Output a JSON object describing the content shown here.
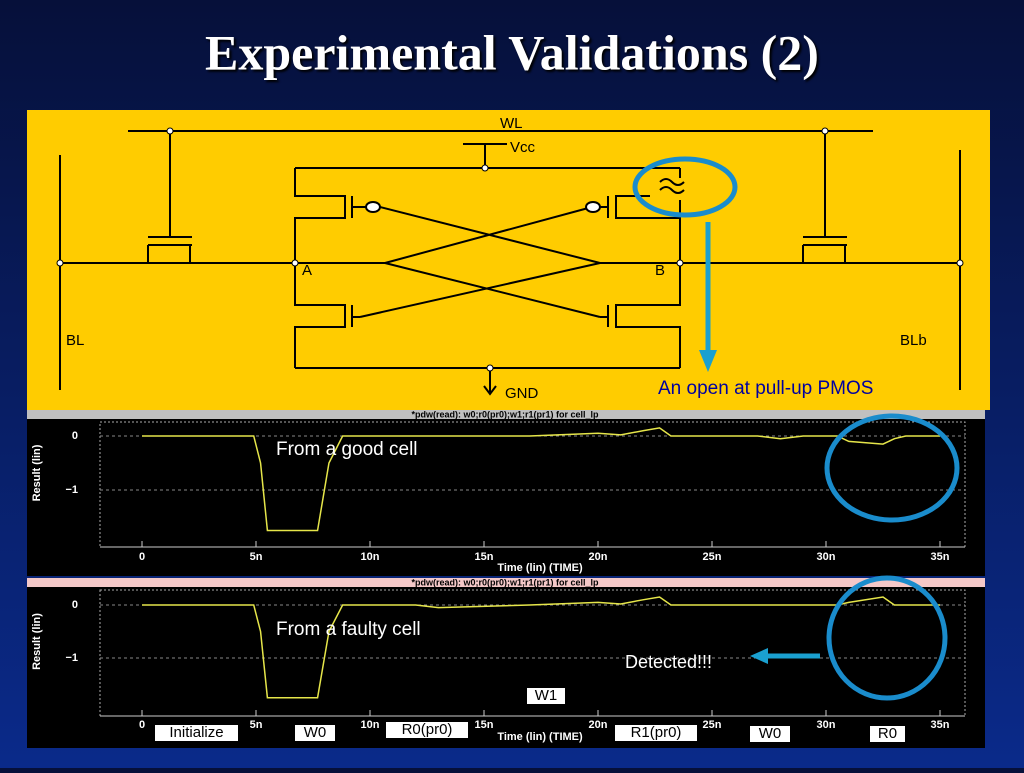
{
  "title": "Experimental Validations (2)",
  "circuit": {
    "wl": "WL",
    "vcc": "Vcc",
    "a": "A",
    "b": "B",
    "bl": "BL",
    "blb": "BLb",
    "gnd": "GND",
    "note": "An open at pull-up PMOS"
  },
  "plots": [
    {
      "header": "*pdw(read): w0;r0(pr0);w1;r1(pr1) for cell_lp",
      "ylabel": "Result (lin)",
      "xlabel": "Time (lin) (TIME)",
      "xticks": [
        0,
        {
          "value": 5,
          "label": "5n"
        },
        {
          "value": 10,
          "label": "10n"
        },
        {
          "value": 15,
          "label": "15n"
        },
        {
          "value": 20,
          "label": "20n"
        },
        {
          "value": 25,
          "label": "25n"
        },
        {
          "value": 30,
          "label": "30n"
        },
        {
          "value": 35,
          "label": "35n"
        }
      ],
      "yticks": [
        0,
        {
          "value": -1,
          "label": "−1"
        }
      ],
      "x": [
        0,
        4.9,
        5.2,
        5.5,
        7.7,
        8.2,
        8.8,
        17,
        20,
        21,
        22,
        22.7,
        23.2,
        27,
        28,
        29,
        30.5,
        31,
        32.5,
        33,
        33.5,
        35
      ],
      "values": [
        0,
        0,
        -0.5,
        -1.75,
        -1.75,
        -0.5,
        0,
        0,
        0.05,
        0.02,
        0.1,
        0.15,
        0,
        0,
        -0.05,
        0,
        0,
        -0.1,
        -0.15,
        -0.05,
        0,
        0
      ],
      "annotation": "From a good cell"
    },
    {
      "header": "*pdw(read): w0;r0(pr0);w1;r1(pr1) for cell_lp",
      "ylabel": "Result (lin)",
      "xlabel": "Time (lin) (TIME)",
      "xticks": [
        0,
        {
          "value": 5,
          "label": "5n"
        },
        {
          "value": 10,
          "label": "10n"
        },
        {
          "value": 15,
          "label": "15n"
        },
        {
          "value": 20,
          "label": "20n"
        },
        {
          "value": 25,
          "label": "25n"
        },
        {
          "value": 30,
          "label": "30n"
        },
        {
          "value": 35,
          "label": "35n"
        }
      ],
      "yticks": [
        0,
        {
          "value": -1,
          "label": "−1"
        }
      ],
      "x": [
        0,
        4.9,
        5.2,
        5.5,
        7.7,
        8.2,
        8.8,
        12,
        13,
        17,
        20,
        21,
        22,
        22.7,
        23.2,
        27,
        30.5,
        31,
        32.5,
        33,
        35
      ],
      "values": [
        0,
        0,
        -0.5,
        -1.75,
        -1.75,
        -0.5,
        0,
        0,
        -0.05,
        0,
        0.05,
        0.02,
        0.1,
        0.15,
        0,
        0,
        0,
        0.05,
        0.15,
        0,
        0
      ],
      "annotation": "From a faulty cell",
      "detected": "Detected!!!",
      "phases": [
        "Initialize",
        "W0",
        "R0(pr0)",
        "W1",
        "R1(pr0)",
        "W0",
        "R0"
      ]
    }
  ]
}
